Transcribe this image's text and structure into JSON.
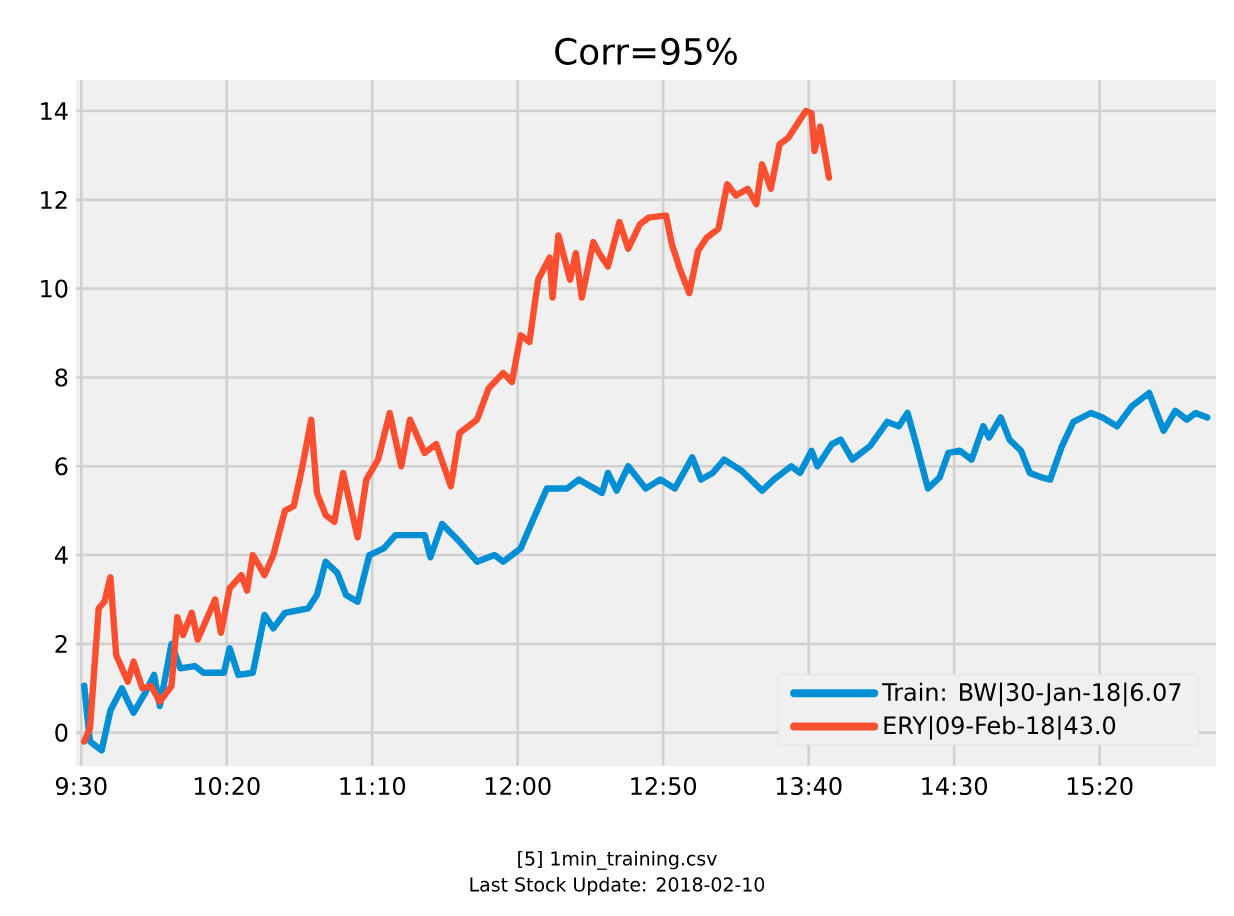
{
  "chart_data": {
    "type": "line",
    "title": "Corr=95%",
    "annotations": [
      "[5] 1min_training.csv",
      "Last Stock Update: 2018-02-10"
    ],
    "xlim": [
      9.47,
      16.0
    ],
    "ylim": [
      -0.75,
      14.7
    ],
    "xticks": [
      {
        "value": 9.5,
        "label": "9:30"
      },
      {
        "value": 10.3333,
        "label": "10:20"
      },
      {
        "value": 11.1667,
        "label": "11:10"
      },
      {
        "value": 12.0,
        "label": "12:00"
      },
      {
        "value": 12.8333,
        "label": "12:50"
      },
      {
        "value": 13.6667,
        "label": "13:40"
      },
      {
        "value": 14.5,
        "label": "14:30"
      },
      {
        "value": 15.3333,
        "label": "15:20"
      }
    ],
    "yticks": [
      0,
      2,
      4,
      6,
      8,
      10,
      12,
      14
    ],
    "grid": true,
    "legend": "bottom right",
    "line_style": "solid",
    "marker": "none",
    "series": [
      {
        "name": "Train: BW|30-Jan-18|6.07",
        "color": "#008fd5",
        "x": [
          9.517,
          9.55,
          9.617,
          9.667,
          9.733,
          9.767,
          9.8,
          9.867,
          9.917,
          9.95,
          10.017,
          10.067,
          10.15,
          10.2,
          10.317,
          10.35,
          10.4,
          10.483,
          10.55,
          10.6,
          10.667,
          10.8,
          10.85,
          10.9,
          10.967,
          11.017,
          11.083,
          11.15,
          11.233,
          11.3,
          11.467,
          11.5,
          11.567,
          11.667,
          11.767,
          11.867,
          11.917,
          12.017,
          12.083,
          12.167,
          12.283,
          12.35,
          12.483,
          12.517,
          12.567,
          12.633,
          12.733,
          12.817,
          12.9,
          13.0,
          13.05,
          13.117,
          13.183,
          13.283,
          13.4,
          13.467,
          13.567,
          13.617,
          13.683,
          13.717,
          13.8,
          13.85,
          13.917,
          14.017,
          14.117,
          14.183,
          14.233,
          14.283,
          14.35,
          14.417,
          14.467,
          14.533,
          14.6,
          14.667,
          14.7,
          14.767,
          14.817,
          14.883,
          14.933,
          15.0,
          15.05,
          15.117,
          15.183,
          15.283,
          15.35,
          15.433,
          15.517,
          15.617,
          15.7,
          15.767,
          15.833,
          15.883,
          15.95
        ],
        "values": [
          1.06,
          -0.2,
          -0.4,
          0.5,
          1.0,
          0.7,
          0.45,
          0.9,
          1.3,
          0.6,
          2.0,
          1.45,
          1.5,
          1.35,
          1.35,
          1.9,
          1.3,
          1.35,
          2.65,
          2.35,
          2.7,
          2.8,
          3.1,
          3.85,
          3.6,
          3.1,
          2.95,
          4.0,
          4.15,
          4.45,
          4.45,
          3.95,
          4.7,
          4.3,
          3.85,
          4.0,
          3.85,
          4.15,
          4.75,
          5.5,
          5.5,
          5.7,
          5.4,
          5.85,
          5.45,
          6.0,
          5.5,
          5.7,
          5.5,
          6.2,
          5.7,
          5.85,
          6.15,
          5.9,
          5.45,
          5.7,
          6.0,
          5.85,
          6.35,
          6.0,
          6.5,
          6.6,
          6.15,
          6.45,
          7.0,
          6.9,
          7.2,
          6.5,
          5.5,
          5.75,
          6.3,
          6.35,
          6.15,
          6.9,
          6.65,
          7.1,
          6.6,
          6.35,
          5.85,
          5.75,
          5.7,
          6.45,
          7.0,
          7.2,
          7.1,
          6.9,
          7.35,
          7.65,
          6.8,
          7.25,
          7.05,
          7.2,
          7.1
        ]
      },
      {
        "name": "ERY|09-Feb-18|43.0",
        "color": "#fc4f30",
        "x": [
          9.517,
          9.55,
          9.6,
          9.633,
          9.667,
          9.7,
          9.767,
          9.8,
          9.85,
          9.9,
          9.95,
          10.017,
          10.05,
          10.083,
          10.133,
          10.167,
          10.267,
          10.3,
          10.35,
          10.417,
          10.45,
          10.483,
          10.55,
          10.6,
          10.667,
          10.717,
          10.767,
          10.817,
          10.85,
          10.9,
          10.95,
          11.0,
          11.083,
          11.133,
          11.2,
          11.267,
          11.333,
          11.383,
          11.467,
          11.533,
          11.617,
          11.667,
          11.767,
          11.833,
          11.917,
          11.967,
          12.017,
          12.067,
          12.117,
          12.183,
          12.2,
          12.233,
          12.3,
          12.333,
          12.367,
          12.433,
          12.467,
          12.517,
          12.583,
          12.633,
          12.7,
          12.75,
          12.85,
          12.883,
          12.933,
          12.983,
          13.033,
          13.083,
          13.15,
          13.2,
          13.25,
          13.317,
          13.367,
          13.4,
          13.45,
          13.5,
          13.55,
          13.6,
          13.65,
          13.683,
          13.7,
          13.733,
          13.783
        ],
        "values": [
          -0.2,
          0.1,
          2.8,
          2.95,
          3.5,
          1.75,
          1.15,
          1.6,
          1.0,
          1.05,
          0.7,
          1.05,
          2.6,
          2.2,
          2.7,
          2.1,
          3.0,
          2.25,
          3.25,
          3.55,
          3.2,
          4.0,
          3.55,
          4.0,
          5.0,
          5.1,
          6.0,
          7.05,
          5.4,
          4.9,
          4.75,
          5.85,
          4.4,
          5.7,
          6.15,
          7.2,
          6.0,
          7.05,
          6.3,
          6.5,
          5.55,
          6.75,
          7.05,
          7.75,
          8.1,
          7.9,
          8.95,
          8.8,
          10.2,
          10.7,
          9.8,
          11.2,
          10.2,
          10.8,
          9.8,
          11.05,
          10.8,
          10.5,
          11.5,
          10.9,
          11.45,
          11.6,
          11.65,
          11.0,
          10.4,
          9.9,
          10.85,
          11.15,
          11.35,
          12.35,
          12.1,
          12.25,
          11.9,
          12.8,
          12.25,
          13.25,
          13.4,
          13.7,
          14.0,
          13.95,
          13.1,
          13.65,
          12.5
        ]
      }
    ]
  }
}
